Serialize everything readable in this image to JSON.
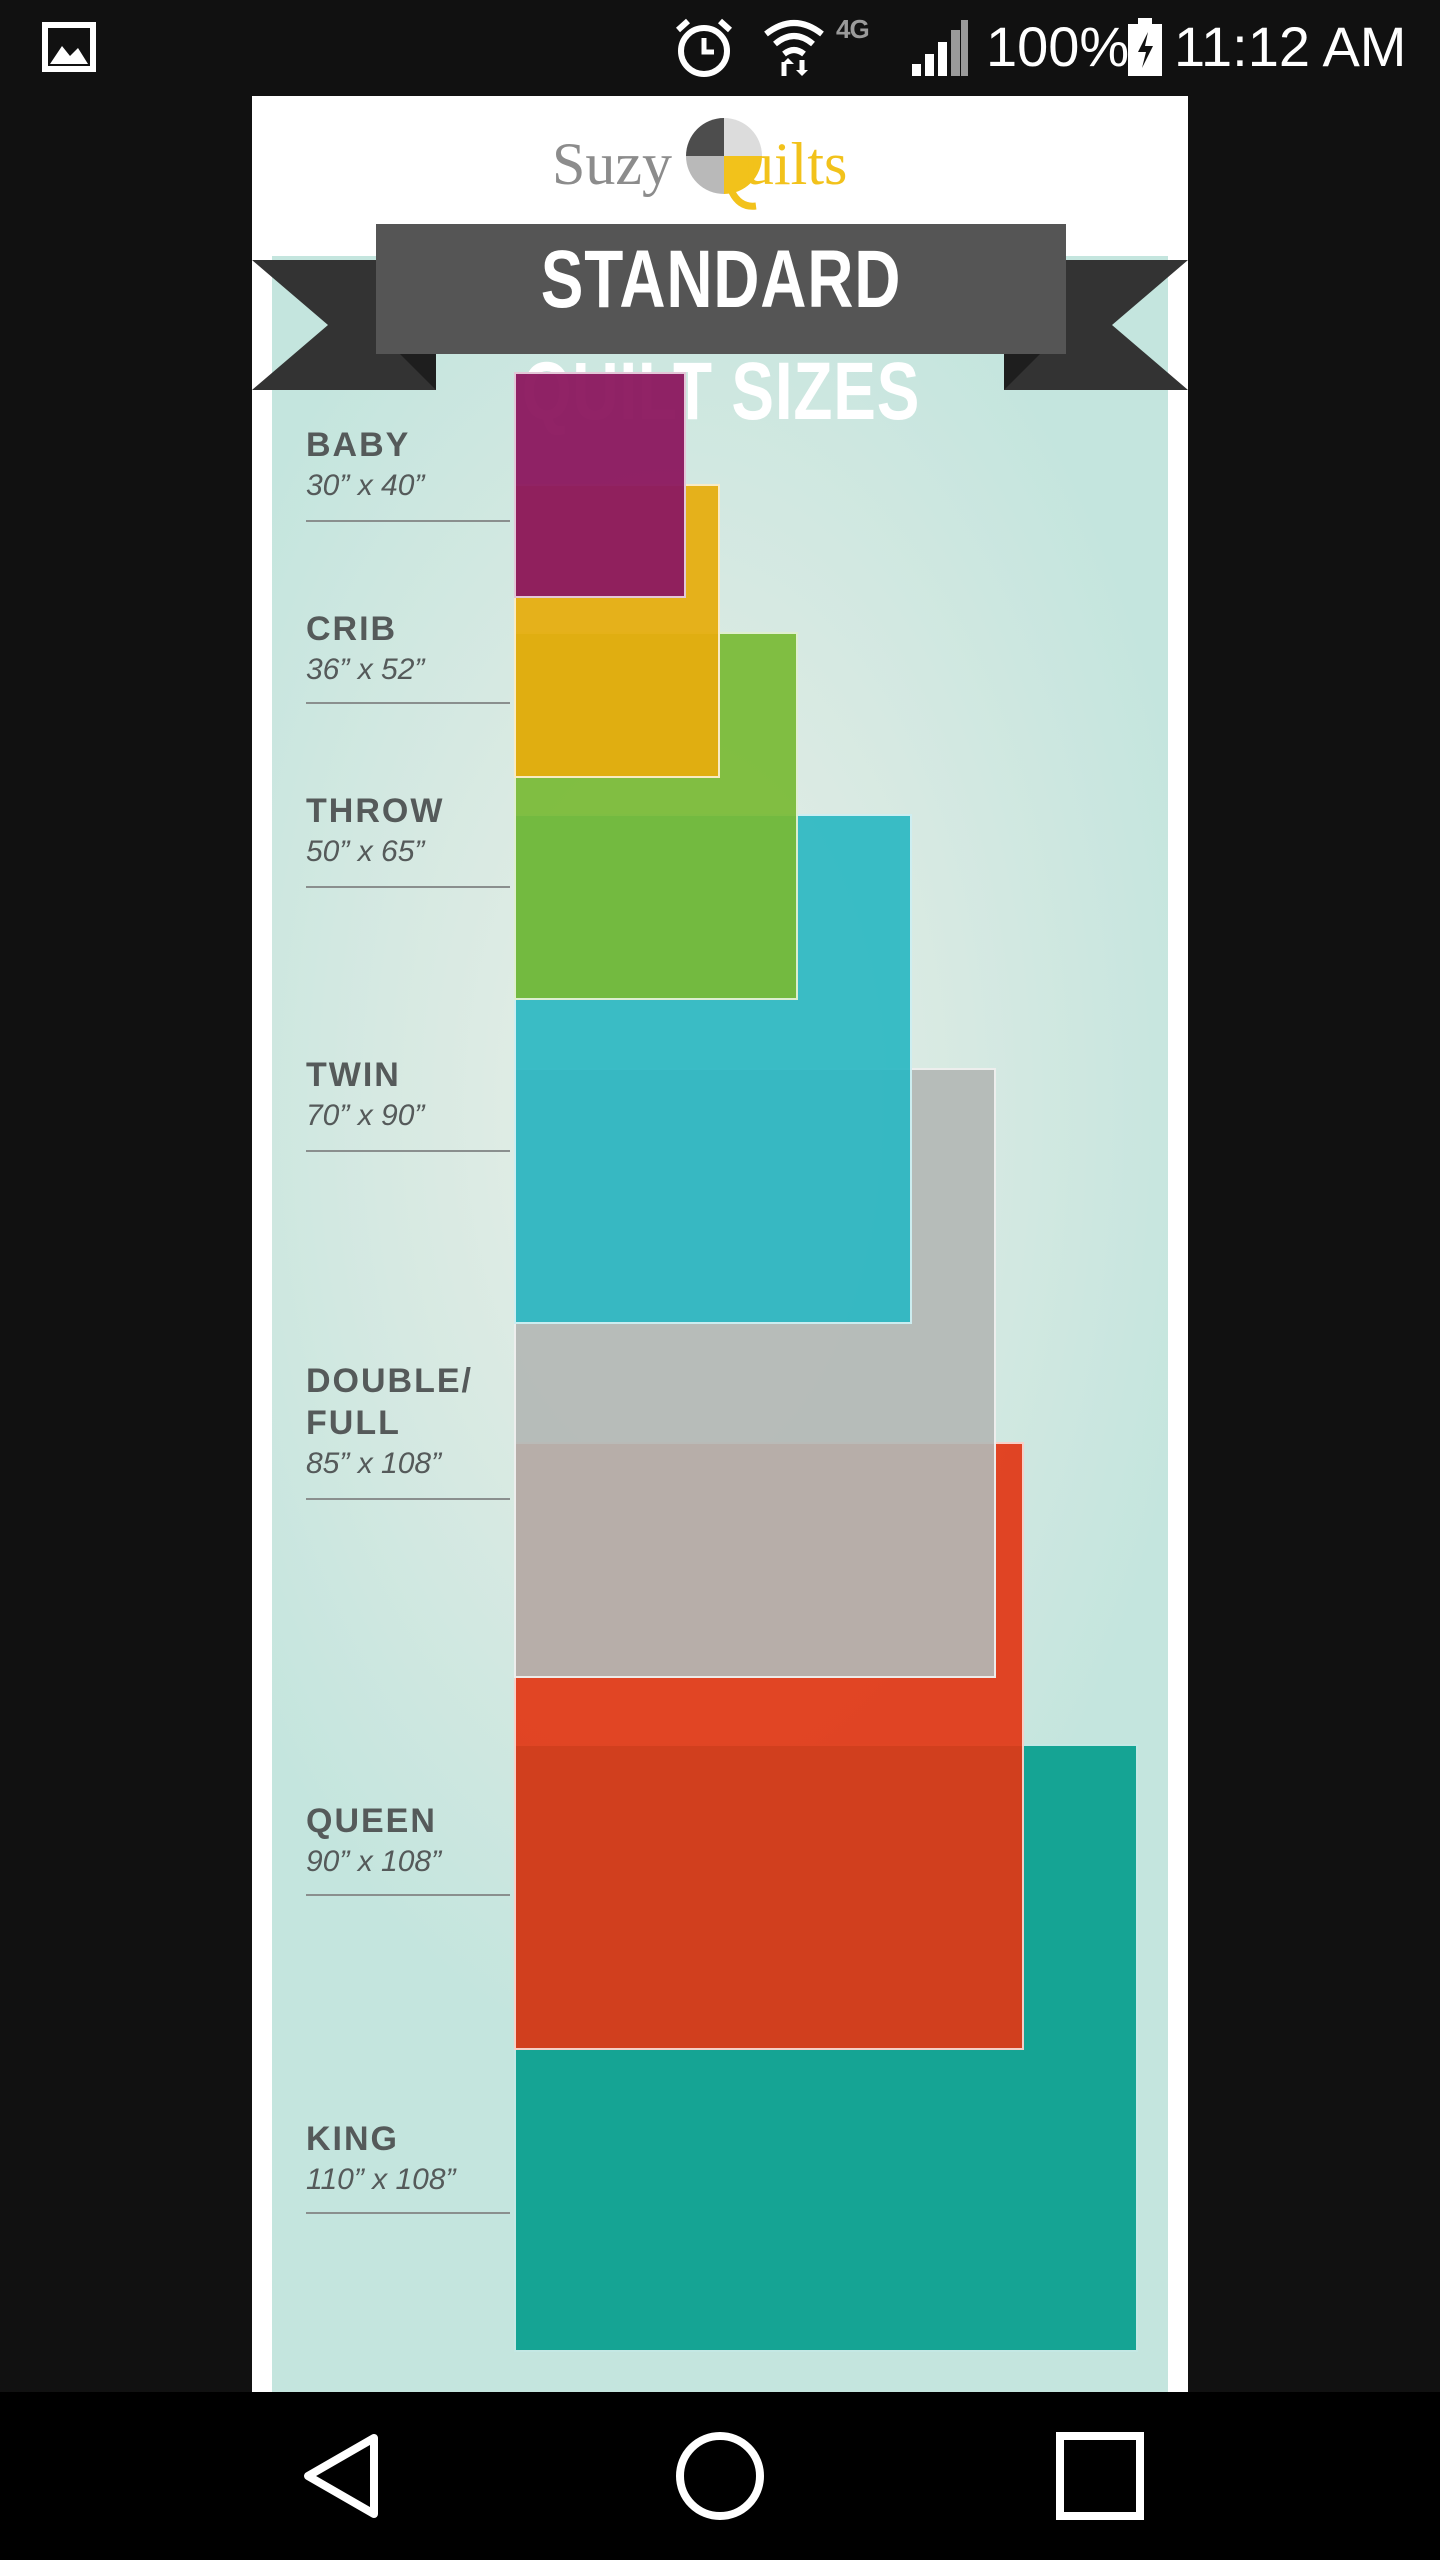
{
  "status_bar": {
    "network_type": "4G",
    "battery_percent": "100%",
    "time": "11:12 AM",
    "icons": [
      "gallery-icon",
      "alarm-icon",
      "wifi-icon",
      "signal-icon",
      "battery-charging-icon"
    ]
  },
  "infographic": {
    "logo": {
      "part_a": "Suzy",
      "part_b": "uilts"
    },
    "title": "STANDARD QUILT SIZES",
    "sizes": [
      {
        "name": "BABY",
        "dimensions": "30” x 40”",
        "color": "#8e1e5f"
      },
      {
        "name": "CRIB",
        "dimensions": "36” x 52”",
        "color": "#e3ae1a"
      },
      {
        "name": "THROW",
        "dimensions": "50” x 65”",
        "color": "#7fbb3f"
      },
      {
        "name": "TWIN",
        "dimensions": "70” x 90”",
        "color": "#38b9c3"
      },
      {
        "name": "DOUBLE/ FULL",
        "dimensions": "85” x 108”",
        "color": "#b3b7b5"
      },
      {
        "name": "QUEEN",
        "dimensions": "90” x 108”",
        "color": "#e03e21"
      },
      {
        "name": "KING",
        "dimensions": "110” x 108”",
        "color": "#15a494"
      }
    ]
  },
  "nav_bar": {
    "buttons": [
      "back-icon",
      "home-icon",
      "recents-icon"
    ]
  }
}
